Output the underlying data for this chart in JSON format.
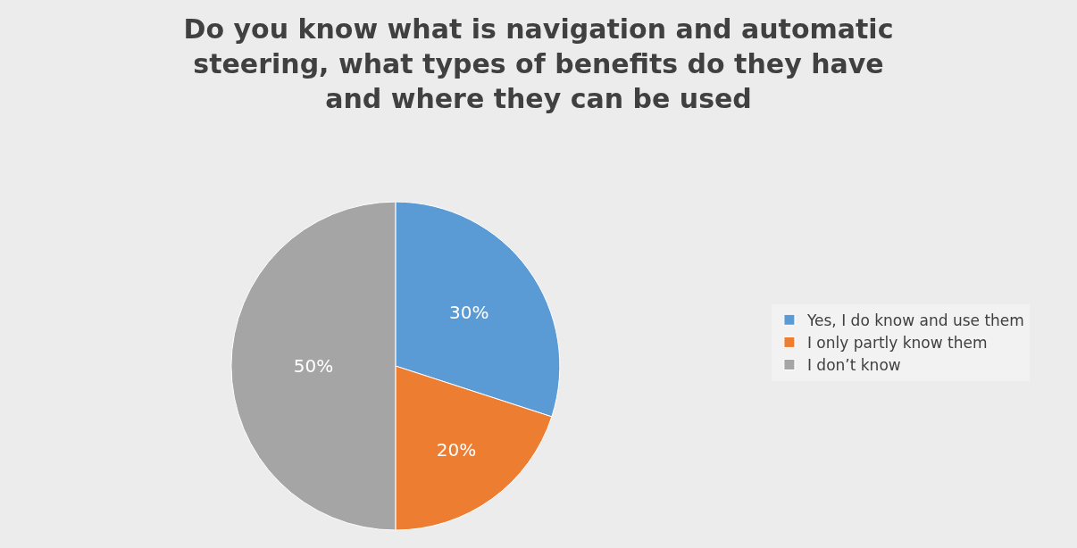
{
  "chart_data": {
    "type": "pie",
    "title": "Do you know what is navigation and automatic steering, what types of benefits do they have and where they can be used",
    "categories": [
      "Yes, I do know and use them",
      "I only partly know them",
      "I don’t know"
    ],
    "values": [
      30,
      20,
      50
    ],
    "colors": [
      "#5b9bd5",
      "#ed7d31",
      "#a5a5a5"
    ],
    "value_labels": [
      "30%",
      "20%",
      "50%"
    ],
    "legend": "right"
  }
}
